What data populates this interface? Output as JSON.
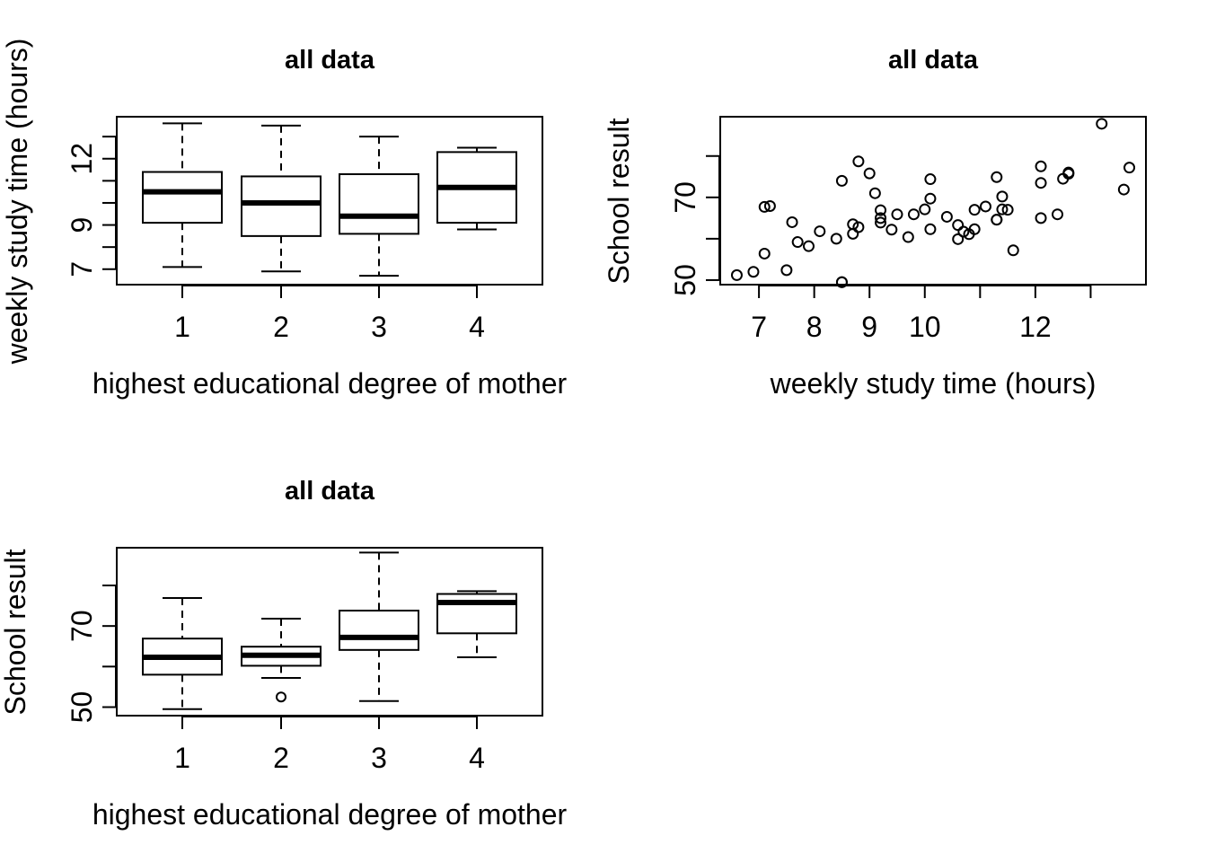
{
  "chart_data": [
    {
      "id": "box1",
      "type": "boxplot",
      "title": "all data",
      "xlabel": "highest educational degree of mother",
      "ylabel": "weekly study time (hours)",
      "categories": [
        "1",
        "2",
        "3",
        "4"
      ],
      "ylim": [
        6.3,
        13.9
      ],
      "yticks": [
        7,
        8,
        9,
        10,
        11,
        12,
        13
      ],
      "ytick_labels": [
        "7",
        "",
        "9",
        "",
        "",
        "12",
        ""
      ],
      "boxes": [
        {
          "whisker_low": 7.1,
          "q1": 9.1,
          "median": 10.5,
          "q3": 11.4,
          "whisker_high": 13.6,
          "outliers": []
        },
        {
          "whisker_low": 6.9,
          "q1": 8.5,
          "median": 10.0,
          "q3": 11.2,
          "whisker_high": 13.5,
          "outliers": []
        },
        {
          "whisker_low": 6.7,
          "q1": 8.6,
          "median": 9.4,
          "q3": 11.3,
          "whisker_high": 13.0,
          "outliers": []
        },
        {
          "whisker_low": 8.8,
          "q1": 9.1,
          "median": 10.7,
          "q3": 12.3,
          "whisker_high": 12.5,
          "outliers": []
        }
      ]
    },
    {
      "id": "scatter",
      "type": "scatter",
      "title": "all data",
      "xlabel": "weekly study time (hours)",
      "ylabel": "School result",
      "xlim": [
        6.3,
        14.0
      ],
      "ylim": [
        48.9,
        89.5
      ],
      "xticks": [
        7,
        8,
        9,
        10,
        11,
        12,
        13
      ],
      "xtick_labels": [
        "7",
        "8",
        "9",
        "10",
        "",
        "12",
        ""
      ],
      "yticks": [
        50,
        60,
        70,
        80
      ],
      "ytick_labels": [
        "50",
        "",
        "70",
        ""
      ],
      "x": [
        6.6,
        6.9,
        7.1,
        7.1,
        7.2,
        7.5,
        7.6,
        7.7,
        7.9,
        8.1,
        8.4,
        8.5,
        8.5,
        8.5,
        8.7,
        8.7,
        8.8,
        8.8,
        9.0,
        9.1,
        9.2,
        9.2,
        9.2,
        9.4,
        9.5,
        9.7,
        9.8,
        10.0,
        10.1,
        10.1,
        10.1,
        10.4,
        10.6,
        10.6,
        10.7,
        10.8,
        10.9,
        10.9,
        11.1,
        11.3,
        11.3,
        11.3,
        11.4,
        11.4,
        11.5,
        11.6,
        12.1,
        12.1,
        12.1,
        12.4,
        12.5,
        12.6,
        12.6,
        13.2,
        13.6,
        13.7
      ],
      "y": [
        51.2,
        52.0,
        56.4,
        67.7,
        67.9,
        52.4,
        64.0,
        59.2,
        58.2,
        61.8,
        60.0,
        74.0,
        49.5,
        49.5,
        61.2,
        63.5,
        62.8,
        78.7,
        75.8,
        71.0,
        66.9,
        65.0,
        63.9,
        62.2,
        65.9,
        60.4,
        65.9,
        67.1,
        74.4,
        69.7,
        62.3,
        65.3,
        63.3,
        59.9,
        61.7,
        61.1,
        62.3,
        67.0,
        67.8,
        74.9,
        64.6,
        64.6,
        70.2,
        67.1,
        67.0,
        57.2,
        77.5,
        73.5,
        65.0,
        65.9,
        74.5,
        76.0,
        75.7,
        87.8,
        71.9,
        77.2
      ]
    },
    {
      "id": "box2",
      "type": "boxplot",
      "title": "all data",
      "xlabel": "highest educational degree of mother",
      "ylabel": "School result",
      "categories": [
        "1",
        "2",
        "3",
        "4"
      ],
      "ylim": [
        47.9,
        89.3
      ],
      "yticks": [
        50,
        60,
        70,
        80
      ],
      "ytick_labels": [
        "50",
        "",
        "70",
        ""
      ],
      "boxes": [
        {
          "whisker_low": 49.5,
          "q1": 58.0,
          "median": 62.3,
          "q3": 66.9,
          "whisker_high": 76.9,
          "outliers": []
        },
        {
          "whisker_low": 57.2,
          "q1": 60.2,
          "median": 62.8,
          "q3": 64.9,
          "whisker_high": 71.8,
          "outliers": [
            52.5
          ]
        },
        {
          "whisker_low": 51.5,
          "q1": 64.1,
          "median": 67.2,
          "q3": 73.8,
          "whisker_high": 88.1,
          "outliers": []
        },
        {
          "whisker_low": 62.3,
          "q1": 68.2,
          "median": 75.8,
          "q3": 77.9,
          "whisker_high": 78.6,
          "outliers": []
        }
      ]
    }
  ]
}
